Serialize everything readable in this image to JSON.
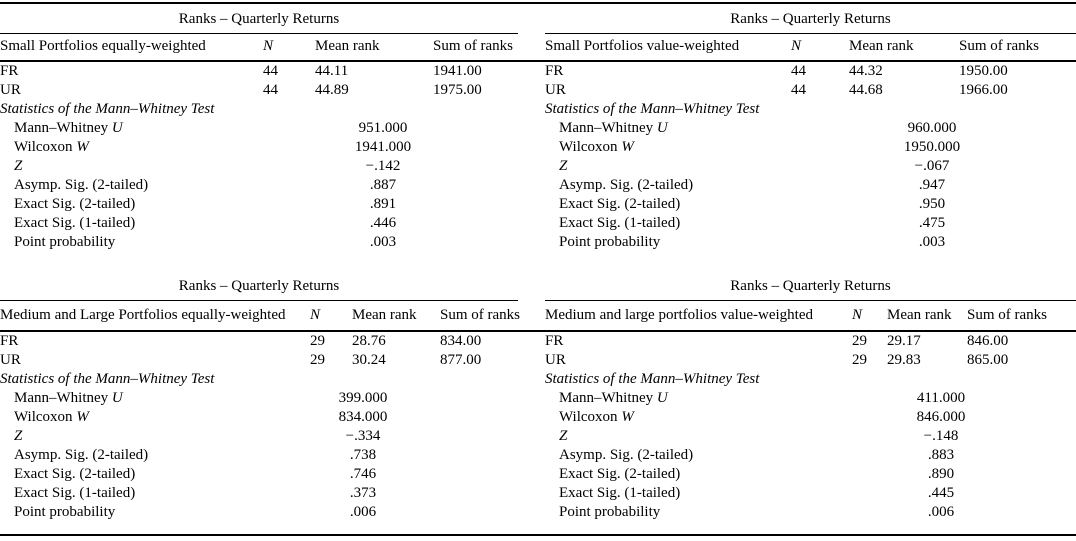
{
  "page": {
    "background": "#ffffff",
    "text_color": "#000000",
    "rule_color": "#000000"
  },
  "tables": [
    {
      "title": "Ranks – Quarterly Returns",
      "columns": {
        "label": "Small Portfolios equally-weighted",
        "n": "N",
        "mean": "Mean rank",
        "sum": "Sum of ranks"
      },
      "rows": [
        {
          "label": "FR",
          "n": "44",
          "mean": "44.11",
          "sum": "1941.00"
        },
        {
          "label": "UR",
          "n": "44",
          "mean": "44.89",
          "sum": "1975.00"
        }
      ],
      "stats_title": "Statistics of the Mann–Whitney Test",
      "stats": [
        {
          "label": "Mann–Whitney ",
          "symbol": "U",
          "value": "951.000"
        },
        {
          "label": "Wilcoxon ",
          "symbol": "W",
          "value": "1941.000"
        },
        {
          "label": "",
          "symbol": "Z",
          "value": "−.142"
        },
        {
          "label": "Asymp. Sig. (2-tailed)",
          "symbol": "",
          "value": ".887"
        },
        {
          "label": "Exact Sig. (2-tailed)",
          "symbol": "",
          "value": ".891"
        },
        {
          "label": "Exact Sig. (1-tailed)",
          "symbol": "",
          "value": ".446"
        },
        {
          "label": "Point probability",
          "symbol": "",
          "value": ".003"
        }
      ]
    },
    {
      "title": "Ranks – Quarterly Returns",
      "columns": {
        "label": "Small Portfolios value-weighted",
        "n": "N",
        "mean": "Mean rank",
        "sum": "Sum of ranks"
      },
      "rows": [
        {
          "label": "FR",
          "n": "44",
          "mean": "44.32",
          "sum": "1950.00"
        },
        {
          "label": "UR",
          "n": "44",
          "mean": "44.68",
          "sum": "1966.00"
        }
      ],
      "stats_title": "Statistics of the Mann–Whitney Test",
      "stats": [
        {
          "label": "Mann–Whitney ",
          "symbol": "U",
          "value": "960.000"
        },
        {
          "label": "Wilcoxon ",
          "symbol": "W",
          "value": "1950.000"
        },
        {
          "label": "",
          "symbol": "Z",
          "value": "−.067"
        },
        {
          "label": "Asymp. Sig. (2-tailed)",
          "symbol": "",
          "value": ".947"
        },
        {
          "label": "Exact Sig. (2-tailed)",
          "symbol": "",
          "value": ".950"
        },
        {
          "label": "Exact Sig. (1-tailed)",
          "symbol": "",
          "value": ".475"
        },
        {
          "label": "Point probability",
          "symbol": "",
          "value": ".003"
        }
      ]
    },
    {
      "title": "Ranks – Quarterly Returns",
      "columns": {
        "label": "Medium and Large Portfolios equally-weighted",
        "n": "N",
        "mean": "Mean rank",
        "sum": "Sum of ranks"
      },
      "rows": [
        {
          "label": "FR",
          "n": "29",
          "mean": "28.76",
          "sum": "834.00"
        },
        {
          "label": "UR",
          "n": "29",
          "mean": "30.24",
          "sum": "877.00"
        }
      ],
      "stats_title": "Statistics of the Mann–Whitney Test",
      "stats": [
        {
          "label": "Mann–Whitney ",
          "symbol": "U",
          "value": "399.000"
        },
        {
          "label": "Wilcoxon ",
          "symbol": "W",
          "value": "834.000"
        },
        {
          "label": "",
          "symbol": "Z",
          "value": "−.334"
        },
        {
          "label": "Asymp. Sig. (2-tailed)",
          "symbol": "",
          "value": ".738"
        },
        {
          "label": "Exact Sig. (2-tailed)",
          "symbol": "",
          "value": ".746"
        },
        {
          "label": "Exact Sig. (1-tailed)",
          "symbol": "",
          "value": ".373"
        },
        {
          "label": "Point probability",
          "symbol": "",
          "value": ".006"
        }
      ]
    },
    {
      "title": "Ranks – Quarterly Returns",
      "columns": {
        "label": "Medium and large portfolios value-weighted",
        "n": "N",
        "mean": "Mean rank",
        "sum": "Sum of ranks"
      },
      "rows": [
        {
          "label": "FR",
          "n": "29",
          "mean": "29.17",
          "sum": "846.00"
        },
        {
          "label": "UR",
          "n": "29",
          "mean": "29.83",
          "sum": "865.00"
        }
      ],
      "stats_title": "Statistics of the Mann–Whitney Test",
      "stats": [
        {
          "label": "Mann–Whitney ",
          "symbol": "U",
          "value": "411.000"
        },
        {
          "label": "Wilcoxon ",
          "symbol": "W",
          "value": "846.000"
        },
        {
          "label": "",
          "symbol": "Z",
          "value": "−.148"
        },
        {
          "label": "Asymp. Sig. (2-tailed)",
          "symbol": "",
          "value": ".883"
        },
        {
          "label": "Exact Sig. (2-tailed)",
          "symbol": "",
          "value": ".890"
        },
        {
          "label": "Exact Sig. (1-tailed)",
          "symbol": "",
          "value": ".445"
        },
        {
          "label": "Point probability",
          "symbol": "",
          "value": ".006"
        }
      ]
    }
  ]
}
